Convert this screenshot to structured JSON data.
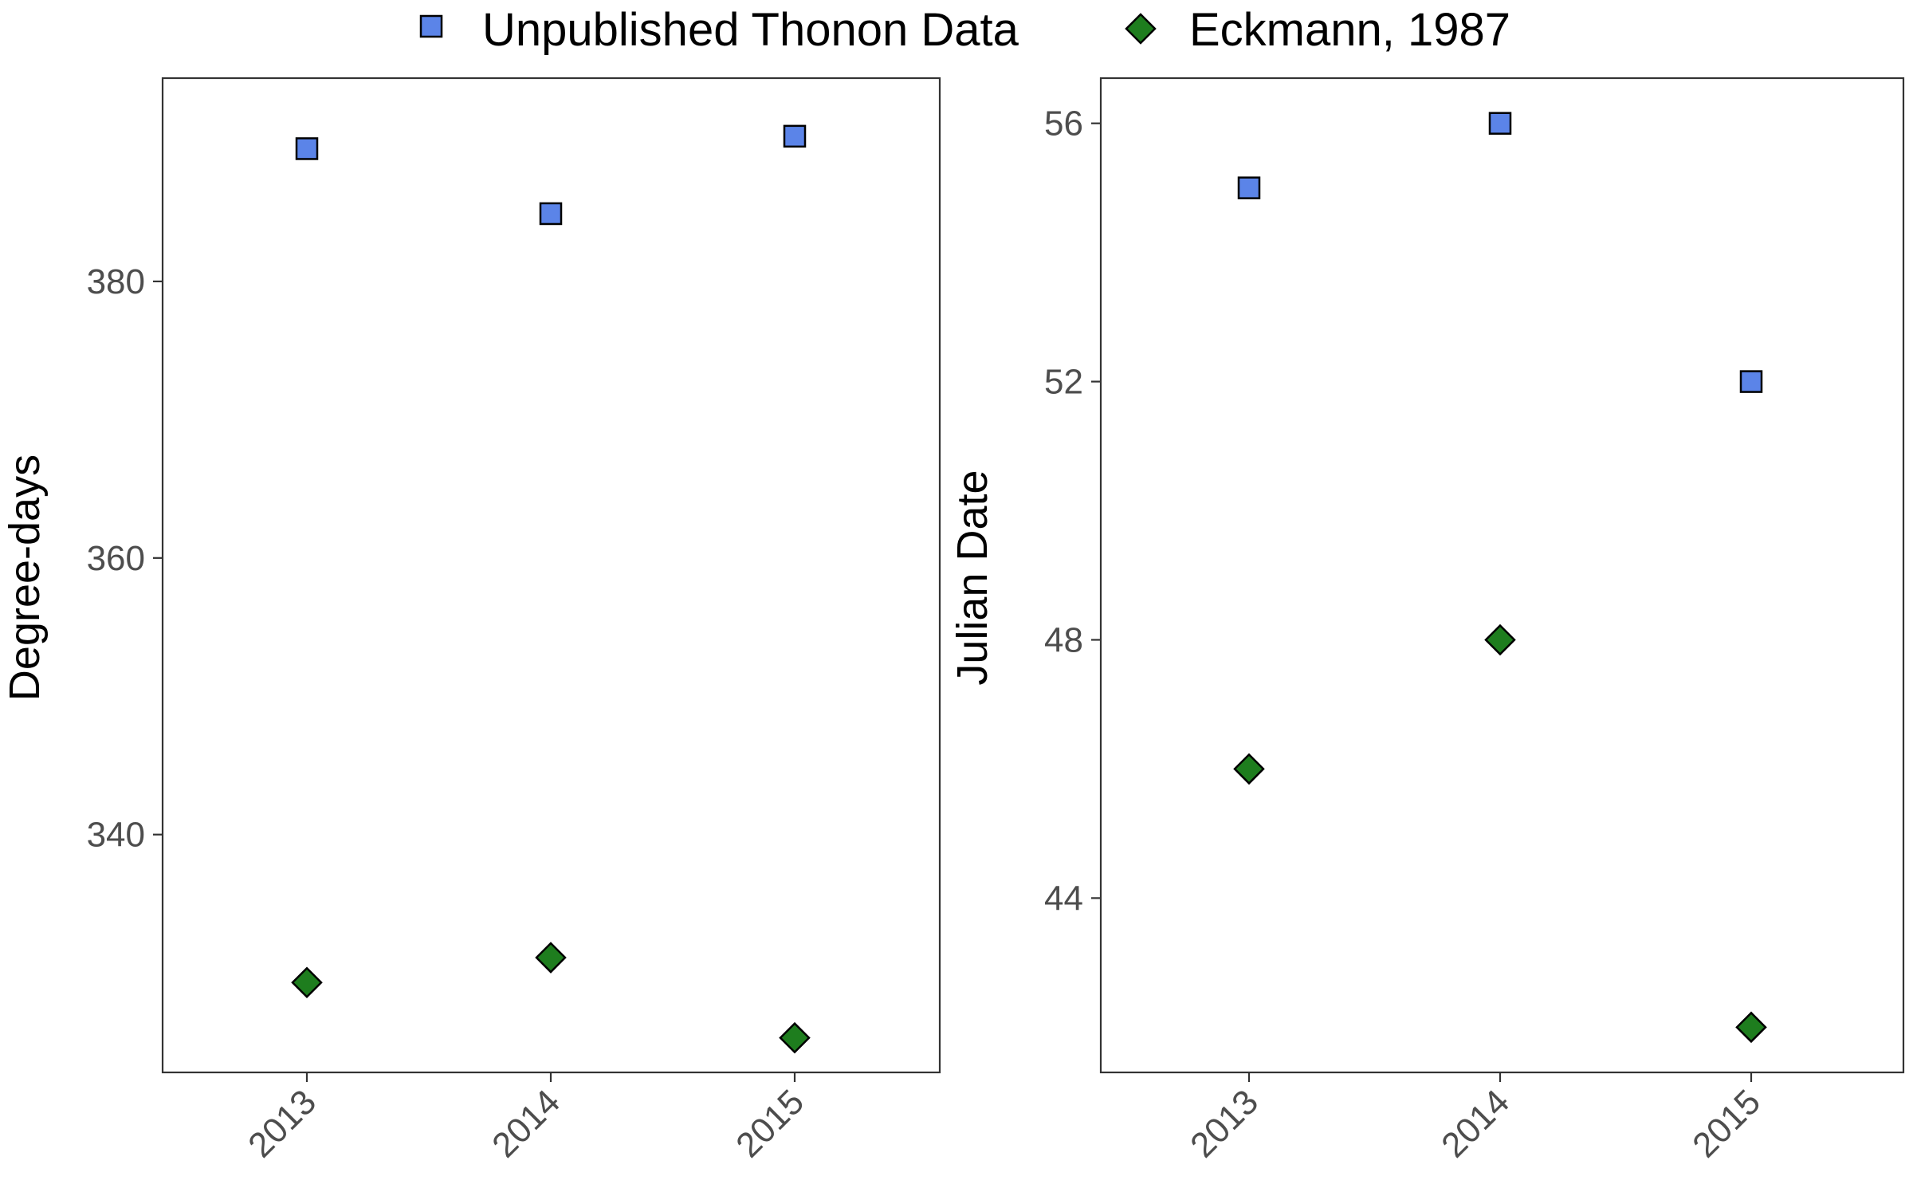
{
  "legend": [
    {
      "label": "Unpublished Thonon Data",
      "shape": "square",
      "color": "#5B84E8"
    },
    {
      "label": "Eckmann, 1987",
      "shape": "diamond",
      "color": "#1E7D1E"
    }
  ],
  "chart_data": [
    {
      "type": "scatter",
      "ylabel": "Degree-days",
      "xlabel": "",
      "categories": [
        "2013",
        "2014",
        "2015"
      ],
      "ylim": [
        322.8,
        394.7
      ],
      "yticks": [
        340,
        360,
        380
      ],
      "grid": false,
      "series": [
        {
          "name": "Unpublished Thonon Data",
          "marker": "square",
          "color": "#5B84E8",
          "values": [
            389.6,
            384.9,
            390.5
          ]
        },
        {
          "name": "Eckmann, 1987",
          "marker": "diamond",
          "color": "#1E7D1E",
          "values": [
            329.3,
            331.1,
            325.3
          ]
        }
      ]
    },
    {
      "type": "scatter",
      "ylabel": "Julian Date",
      "xlabel": "",
      "categories": [
        "2013",
        "2014",
        "2015"
      ],
      "ylim": [
        41.3,
        56.7
      ],
      "yticks": [
        44,
        48,
        52,
        56
      ],
      "grid": false,
      "series": [
        {
          "name": "Unpublished Thonon Data",
          "marker": "square",
          "color": "#5B84E8",
          "values": [
            55,
            56,
            52
          ]
        },
        {
          "name": "Eckmann, 1987",
          "marker": "diamond",
          "color": "#1E7D1E",
          "values": [
            46,
            48,
            42
          ]
        }
      ]
    }
  ]
}
